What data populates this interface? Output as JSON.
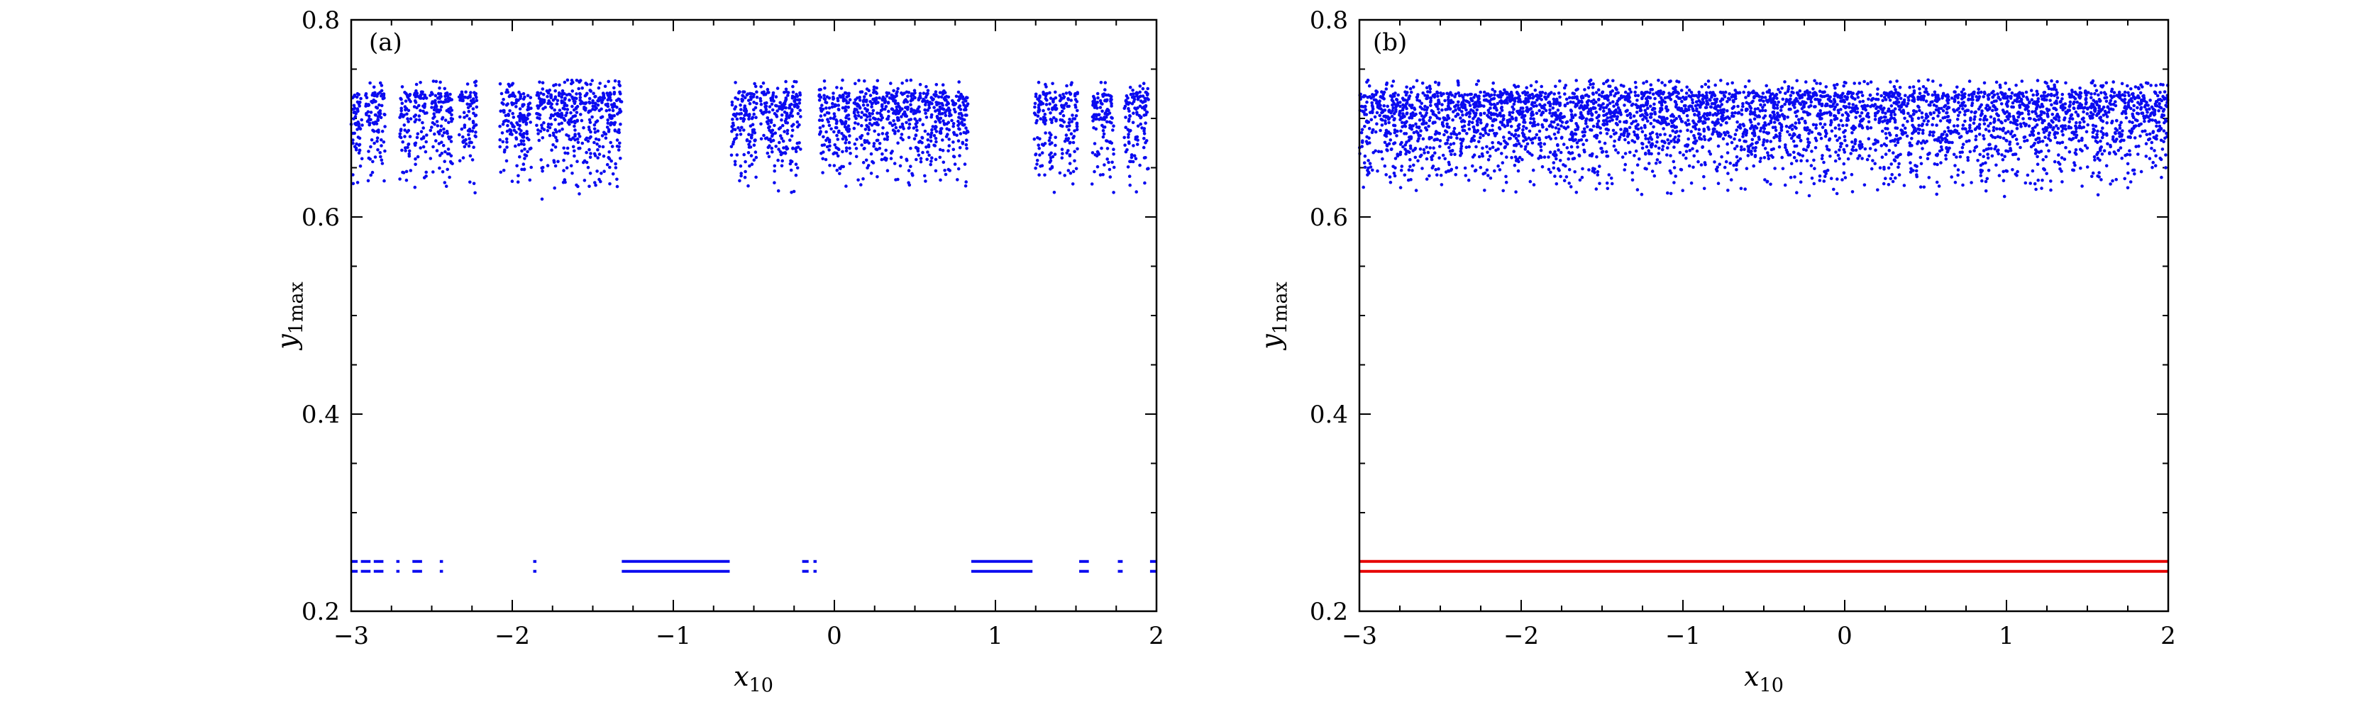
{
  "figure": {
    "background": "#ffffff",
    "frame_color": "#000000"
  },
  "chart_data": [
    {
      "panel_label": "(a)",
      "type": "scatter",
      "xlabel": {
        "base": "x",
        "sub": "10"
      },
      "ylabel": {
        "base": "y",
        "sub": "1max"
      },
      "xlim": [
        -3,
        2
      ],
      "ylim": [
        0.2,
        0.8
      ],
      "xticks": [
        -3,
        -2,
        -1,
        0,
        1,
        2
      ],
      "xtick_labels": [
        "−3",
        "−2",
        "−1",
        "0",
        "1",
        "2"
      ],
      "yticks": [
        0.2,
        0.4,
        0.6,
        0.8
      ],
      "ytick_labels": [
        "0.2",
        "0.4",
        "0.6",
        "0.8"
      ],
      "x_minor_step": 0.25,
      "y_minor_step": 0.05,
      "grid": false,
      "point_color": "#0b0bf0",
      "point_radius": 2.3,
      "chaotic_band": {
        "description": "chaotic attractor band of scattered blue points with periodic windows (gaps)",
        "y_min": 0.613,
        "y_max": 0.727,
        "outlier_y_max": 0.739,
        "outlier_frac": 0.05,
        "power": 0.38,
        "points_per_unit": 800,
        "x_segments": [
          [
            -3.0,
            -2.93
          ],
          [
            -2.91,
            -2.79
          ],
          [
            -2.7,
            -2.63
          ],
          [
            -2.61,
            -2.53
          ],
          [
            -2.51,
            -2.37
          ],
          [
            -2.33,
            -2.22
          ],
          [
            -2.08,
            -1.88
          ],
          [
            -1.85,
            -1.32
          ],
          [
            -0.64,
            -0.48
          ],
          [
            -0.46,
            -0.21
          ],
          [
            -0.1,
            0.1
          ],
          [
            0.12,
            0.83
          ],
          [
            1.24,
            1.38
          ],
          [
            1.4,
            1.51
          ],
          [
            1.6,
            1.74
          ],
          [
            1.8,
            1.95
          ]
        ]
      },
      "periodic_lines": {
        "description": "period-2 orbit maxima appearing inside the periodic windows",
        "color": "#0b0bf0",
        "y_values": [
          0.2405,
          0.2505
        ],
        "line_width": 4,
        "x_segments": [
          [
            -3.0,
            -2.96
          ],
          [
            -2.94,
            -2.88
          ],
          [
            -2.86,
            -2.8
          ],
          [
            -2.72,
            -2.7
          ],
          [
            -2.62,
            -2.56
          ],
          [
            -2.45,
            -2.43
          ],
          [
            -1.87,
            -1.85
          ],
          [
            -1.32,
            -0.65
          ],
          [
            -0.2,
            -0.16
          ],
          [
            -0.13,
            -0.11
          ],
          [
            0.85,
            1.23
          ],
          [
            1.52,
            1.58
          ],
          [
            1.76,
            1.79
          ],
          [
            1.96,
            2.0
          ]
        ]
      }
    },
    {
      "panel_label": "(b)",
      "type": "scatter",
      "xlabel": {
        "base": "x",
        "sub": "10"
      },
      "ylabel": {
        "base": "y",
        "sub": "1max"
      },
      "xlim": [
        -3,
        2
      ],
      "ylim": [
        0.2,
        0.8
      ],
      "xticks": [
        -3,
        -2,
        -1,
        0,
        1,
        2
      ],
      "xtick_labels": [
        "−3",
        "−2",
        "−1",
        "0",
        "1",
        "2"
      ],
      "yticks": [
        0.2,
        0.4,
        0.6,
        0.8
      ],
      "ytick_labels": [
        "0.2",
        "0.4",
        "0.6",
        "0.8"
      ],
      "x_minor_step": 0.25,
      "y_minor_step": 0.05,
      "grid": false,
      "point_color": "#0b0bf0",
      "point_radius": 2.3,
      "chaotic_band": {
        "description": "continuous chaotic attractor band of scattered blue points over full x range",
        "y_min": 0.613,
        "y_max": 0.727,
        "outlier_y_max": 0.739,
        "outlier_frac": 0.05,
        "power": 0.38,
        "points_per_unit": 830,
        "x_segments": [
          [
            -3.0,
            2.0
          ]
        ]
      },
      "periodic_lines": {
        "description": "coexisting period-2 orbit maxima shown as two continuous red lines",
        "color": "#e60000",
        "y_values": [
          0.2405,
          0.2505
        ],
        "line_width": 4,
        "x_segments": [
          [
            -3.0,
            2.0
          ]
        ]
      }
    }
  ]
}
